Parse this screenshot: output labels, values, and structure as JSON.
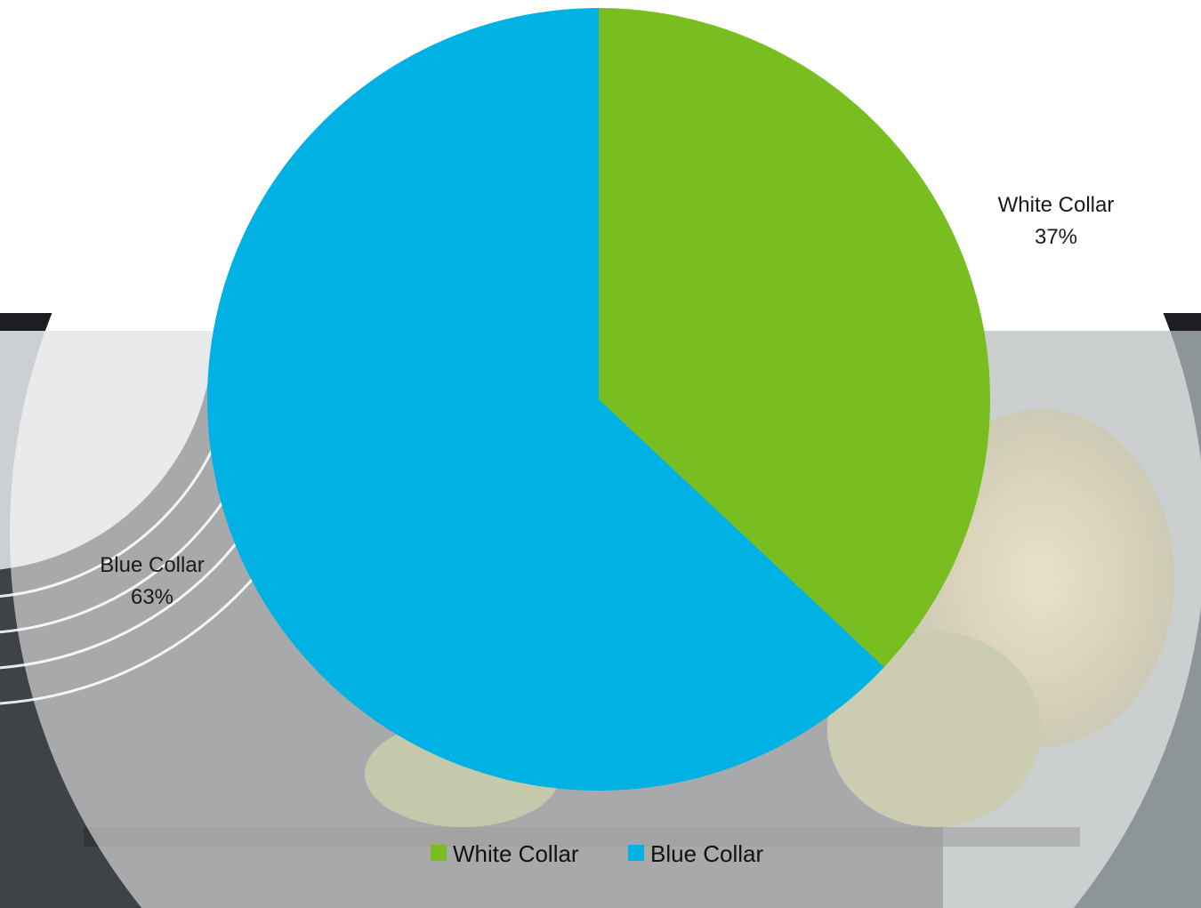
{
  "chart_data": {
    "type": "pie",
    "title": "",
    "slices": [
      {
        "label": "White Collar",
        "value": 37,
        "value_label": "37%",
        "color": "#78be20"
      },
      {
        "label": "Blue Collar",
        "value": 63,
        "value_label": "63%",
        "color": "#00b2e3"
      }
    ],
    "start_angle_deg": 0,
    "direction": "clockwise",
    "legend": {
      "position": "bottom",
      "items": [
        "White Collar",
        "Blue Collar"
      ]
    }
  }
}
